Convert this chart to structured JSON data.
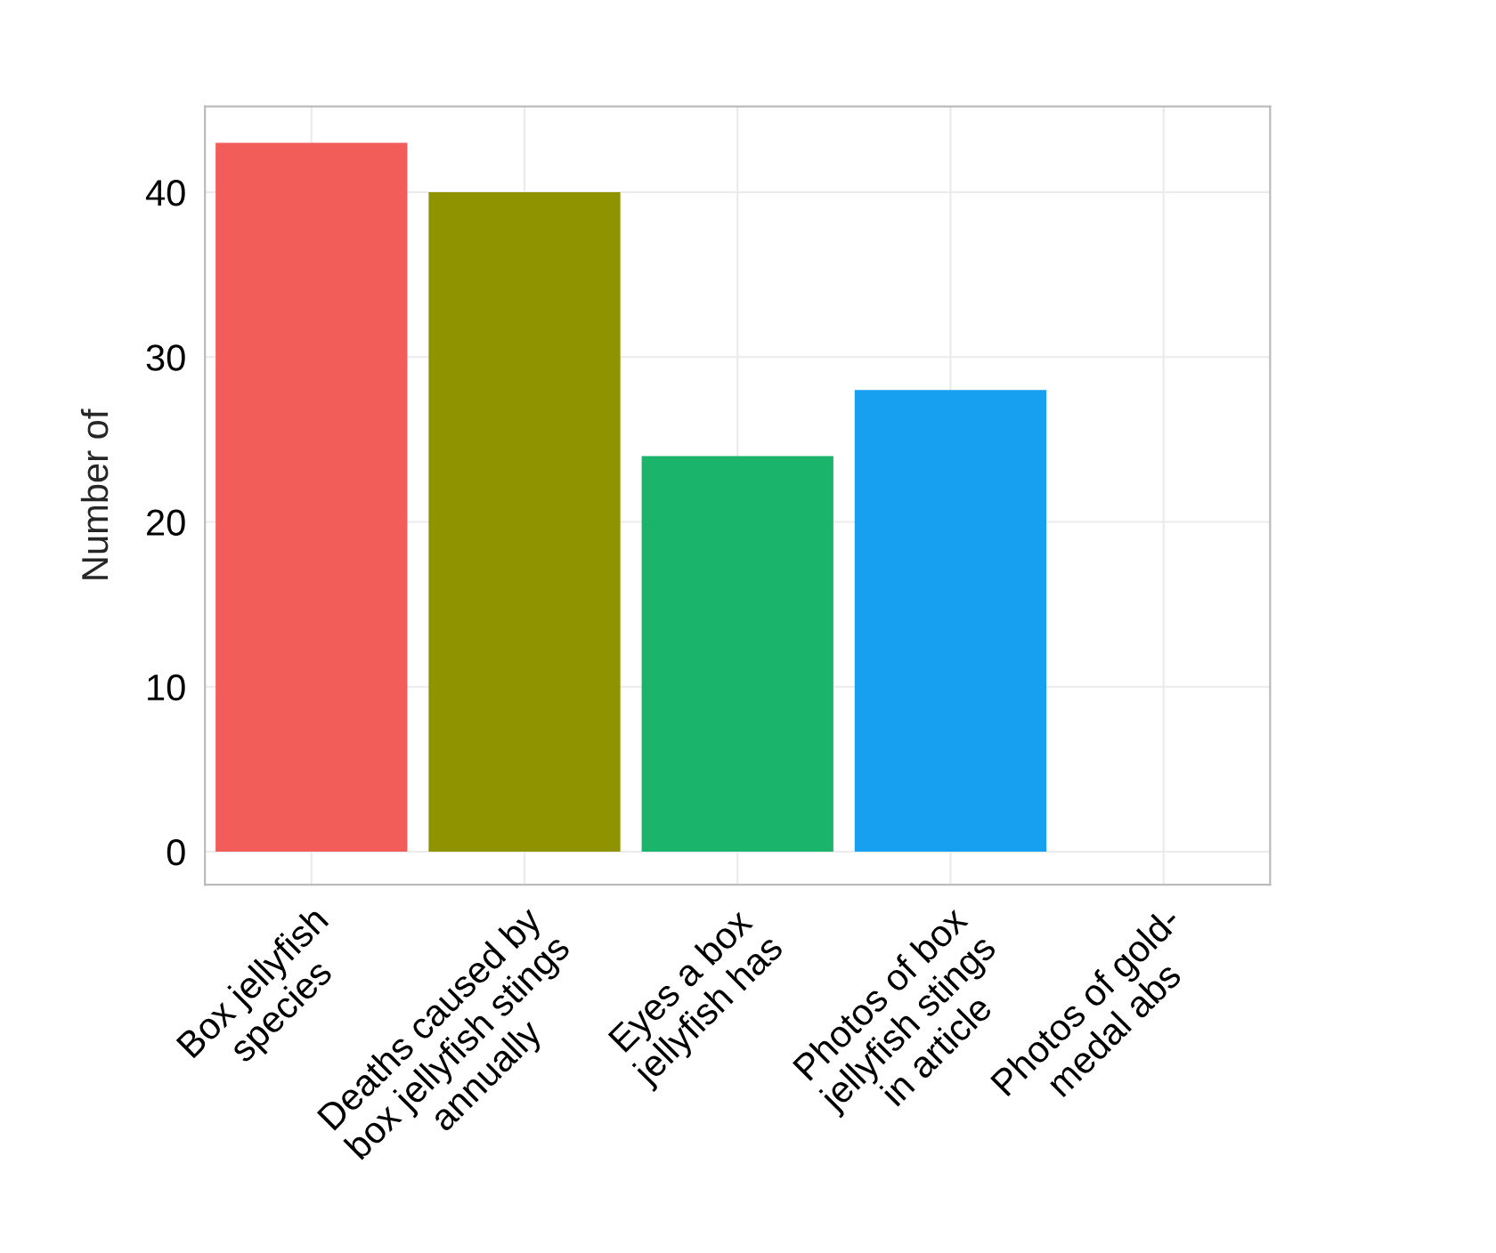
{
  "chart_data": {
    "type": "bar",
    "ylabel": "Number of",
    "categories": [
      "Box jellyfish\nspecies",
      "Deaths caused by\nbox jellyfish stings\nannually",
      "Eyes a box\njellyfish has",
      "Photos of box\njellyfish stings\nin article",
      "Photos of gold-\nmedal abs"
    ],
    "values": [
      43,
      40,
      24,
      28,
      0
    ],
    "colors": [
      "#f25d5a",
      "#8f9300",
      "#1ab56b",
      "#179ff0",
      "#e76bf3"
    ],
    "ylim": [
      -2,
      45.2
    ],
    "yticks": [
      0,
      10,
      20,
      30,
      40
    ],
    "grid": true
  }
}
